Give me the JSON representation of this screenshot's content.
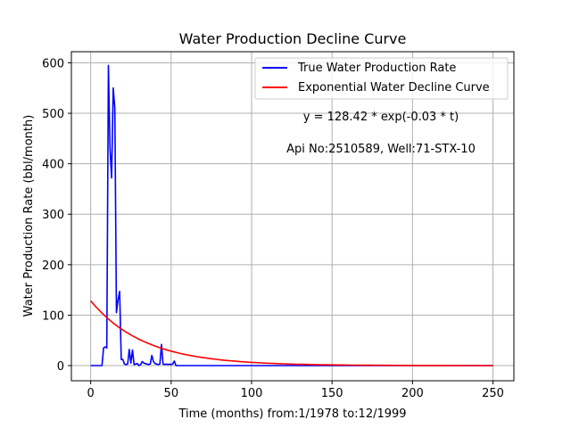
{
  "chart_data": {
    "type": "line",
    "title": "Water Production Decline Curve",
    "xlabel": "Time (months) from:1/1978 to:12/1999",
    "ylabel": "Water Production Rate (bbl/month)",
    "xlim": [
      -12,
      263
    ],
    "ylim": [
      -30,
      622
    ],
    "xticks": [
      0,
      50,
      100,
      150,
      200,
      250
    ],
    "yticks": [
      0,
      100,
      200,
      300,
      400,
      500,
      600
    ],
    "grid": true,
    "legend_position": "top-right",
    "annotations": [
      "y = 128.42 * exp(-0.03 * t)",
      "Api No:2510589, Well:71-STX-10"
    ],
    "series": [
      {
        "name": "True Water Production Rate",
        "color": "#0000ff",
        "x": [
          0,
          1,
          2,
          3,
          4,
          5,
          6,
          7,
          8,
          9,
          10,
          11,
          12,
          13,
          14,
          15,
          16,
          17,
          18,
          19,
          20,
          21,
          22,
          23,
          24,
          25,
          26,
          27,
          28,
          29,
          30,
          31,
          32,
          33,
          34,
          35,
          36,
          37,
          38,
          39,
          40,
          41,
          42,
          43,
          44,
          45,
          46,
          47,
          48,
          49,
          50,
          51,
          52,
          53,
          54,
          55,
          56,
          57,
          58,
          59,
          60,
          70,
          80,
          90,
          100,
          150,
          200,
          250
        ],
        "y": [
          0,
          0,
          0,
          0,
          0,
          0,
          0,
          0,
          35,
          37,
          35,
          595,
          430,
          372,
          550,
          510,
          105,
          130,
          147,
          12,
          12,
          3,
          2,
          3,
          32,
          5,
          31,
          2,
          3,
          4,
          0,
          2,
          8,
          5,
          4,
          3,
          2,
          3,
          20,
          8,
          4,
          3,
          2,
          3,
          42,
          3,
          2,
          3,
          2,
          3,
          2,
          3,
          9,
          0,
          0,
          0,
          0,
          0,
          0,
          0,
          0,
          0,
          0,
          0,
          0,
          0,
          0,
          0
        ]
      },
      {
        "name": "Exponential Water Decline Curve",
        "color": "#ff0000",
        "model": {
          "a": 128.42,
          "b": 0.03,
          "t_start": 0,
          "t_end": 250
        }
      }
    ]
  }
}
